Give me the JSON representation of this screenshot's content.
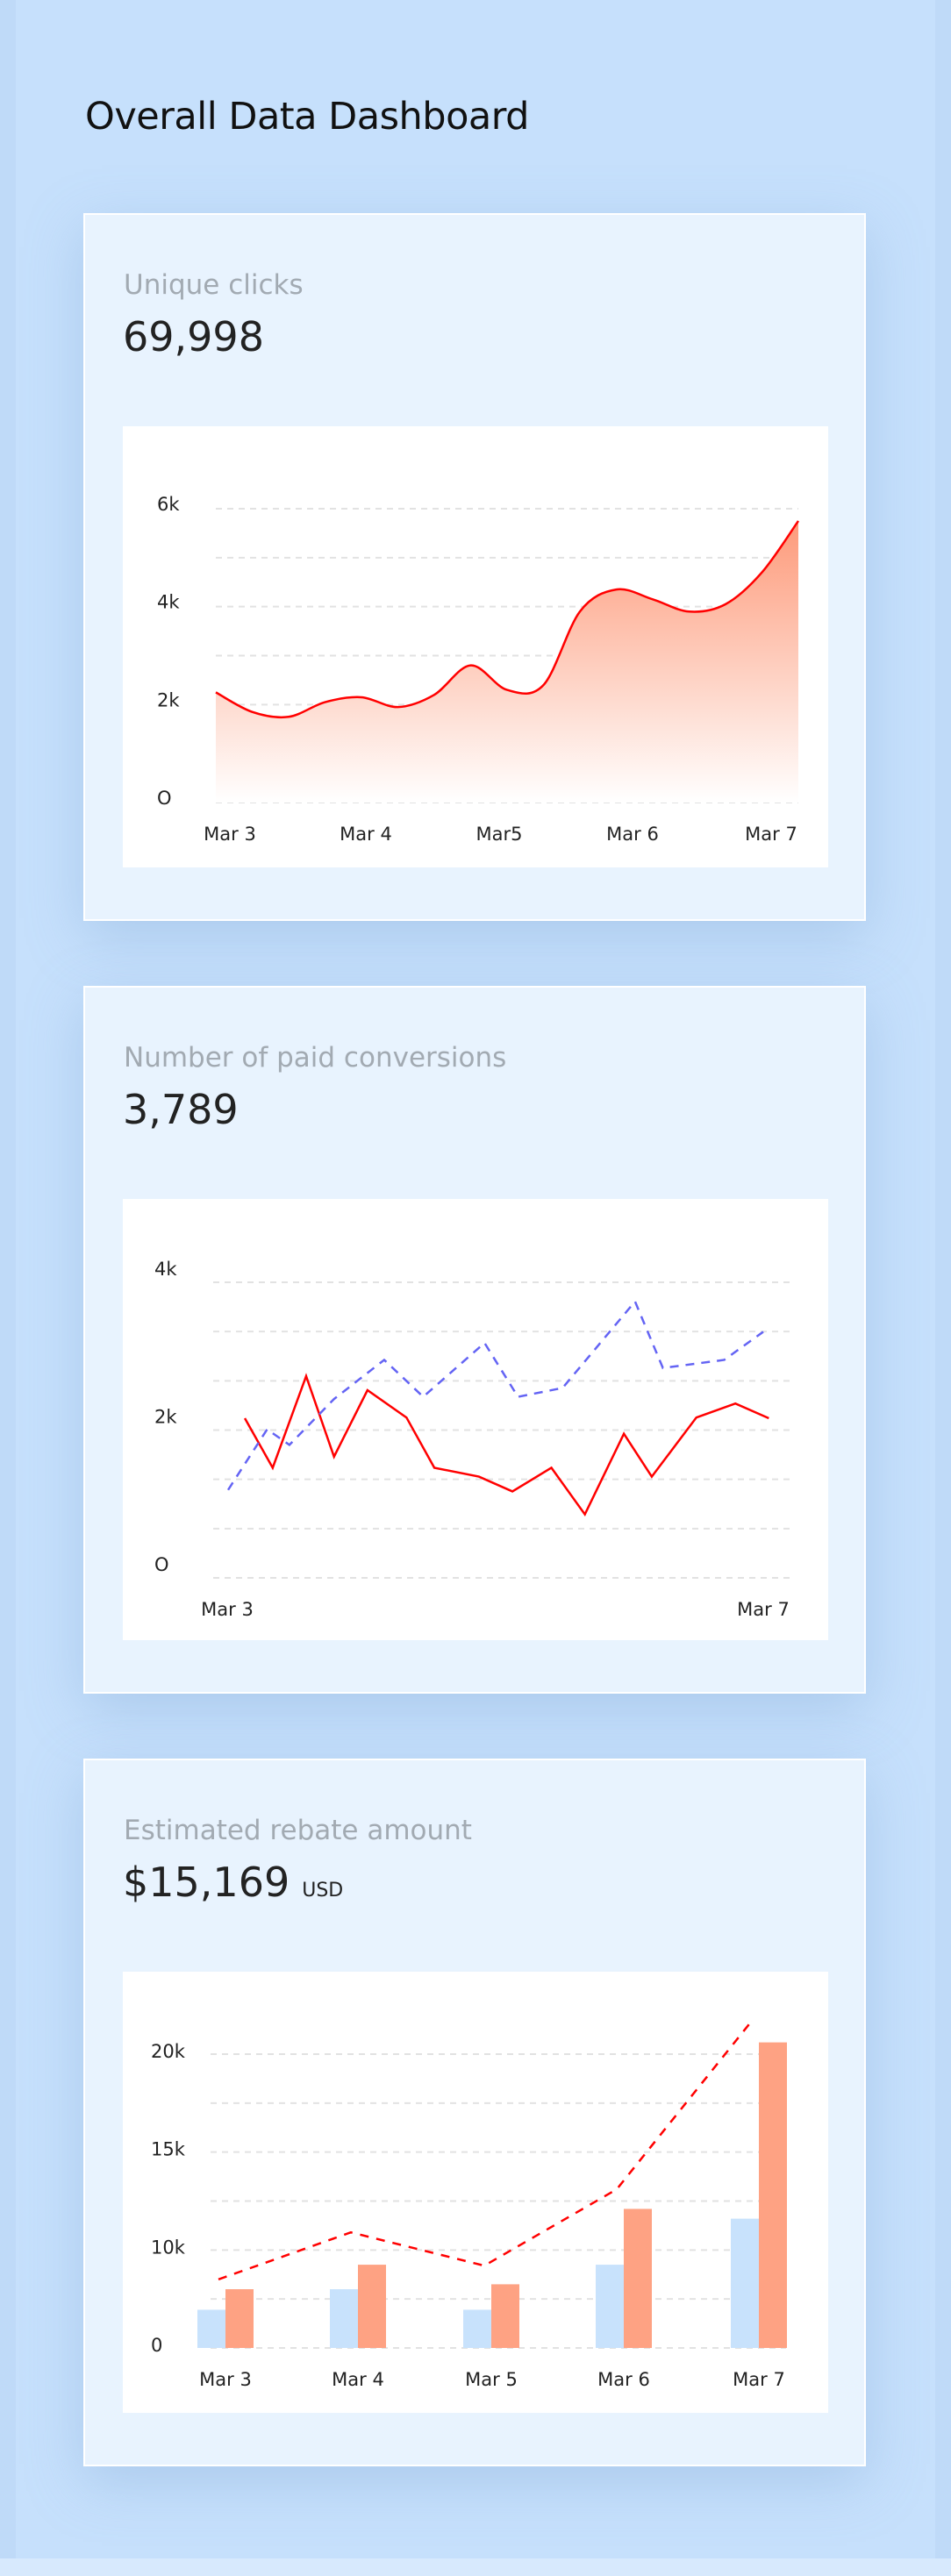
{
  "page": {
    "title": "Overall Data Dashboard"
  },
  "colors": {
    "background": "#c6e0fc",
    "card": "#e8f3fe",
    "red": "#ff0000",
    "area_top": "#fd9a7a",
    "blue_dashed": "#6464f4",
    "bar_blue": "#c8e2fc",
    "bar_orange": "#fea283"
  },
  "cards": [
    {
      "label": "Unique clicks",
      "value": "69,998"
    },
    {
      "label": "Number of paid conversions",
      "value": "3,789"
    },
    {
      "label": "Estimated rebate amount",
      "value": "$15,169",
      "unit": "USD"
    }
  ],
  "chart_data": [
    {
      "type": "area",
      "smooth": true,
      "grid": true,
      "ylim": [
        0,
        6000
      ],
      "y_ticks": [
        {
          "value": 0,
          "label": "O"
        },
        {
          "value": 2000,
          "label": "2k"
        },
        {
          "value": 4000,
          "label": "4k"
        },
        {
          "value": 6000,
          "label": "6k"
        }
      ],
      "x_ticks": [
        "Mar 3",
        "Mar 4",
        "Mar5",
        "Mar 6",
        "Mar 7"
      ],
      "x": [
        "Mar 3 00:00",
        "Mar 3 06:00",
        "Mar 3 12:00",
        "Mar 3 18:00",
        "Mar 4 00:00",
        "Mar 4 06:00",
        "Mar 4 12:00",
        "Mar 4 18:00",
        "Mar 5 00:00",
        "Mar 5 06:00",
        "Mar 5 12:00",
        "Mar 5 18:00",
        "Mar 6 00:00",
        "Mar 6 06:00",
        "Mar 6 12:00",
        "Mar 6 18:00",
        "Mar 7 00:00"
      ],
      "values": [
        2250,
        1850,
        1750,
        2050,
        2150,
        1950,
        2200,
        2800,
        2300,
        2400,
        3900,
        4350,
        4150,
        3900,
        4050,
        4700,
        5750
      ]
    },
    {
      "type": "line",
      "grid": true,
      "ylim": [
        0,
        4000
      ],
      "y_ticks": [
        {
          "value": 0,
          "label": "O"
        },
        {
          "value": 2000,
          "label": "2k"
        },
        {
          "value": 4000,
          "label": "4k"
        }
      ],
      "x_ticks": [
        "Mar 3",
        "Mar 7"
      ],
      "series": [
        {
          "style": "solid",
          "color": "#ff0000",
          "x": [
            "Mar 3 03:00",
            "Mar 3 08:00",
            "Mar 3 14:00",
            "Mar 3 19:00",
            "Mar 4 01:00",
            "Mar 4 08:00",
            "Mar 4 13:00",
            "Mar 4 21:00",
            "Mar 5 03:00",
            "Mar 5 10:00",
            "Mar 5 16:00",
            "Mar 5 23:00",
            "Mar 6 04:00",
            "Mar 6 12:00",
            "Mar 6 19:00",
            "Mar 7 01:00"
          ],
          "values": [
            2160,
            1490,
            2730,
            1640,
            2540,
            2170,
            1490,
            1370,
            1170,
            1490,
            860,
            1950,
            1370,
            2170,
            2360,
            2160
          ]
        },
        {
          "style": "dashed",
          "color": "#6464f4",
          "x": [
            "Mar 3 00:00",
            "Mar 3 07:00",
            "Mar 3 11:00",
            "Mar 3 19:00",
            "Mar 4 04:00",
            "Mar 4 11:00",
            "Mar 4 22:00",
            "Mar 5 04:00",
            "Mar 5 12:00",
            "Mar 6 01:00",
            "Mar 6 06:00",
            "Mar 6 17:00",
            "Mar 7 00:00"
          ],
          "values": [
            1190,
            2010,
            1800,
            2420,
            2950,
            2450,
            3180,
            2450,
            2570,
            3740,
            2840,
            2950,
            3330
          ]
        }
      ]
    },
    {
      "type": "bar",
      "grid": true,
      "y_ticks": [
        {
          "value": 0,
          "label": "0"
        },
        {
          "value": 10000,
          "label": "10k"
        },
        {
          "value": 15000,
          "label": "15k"
        },
        {
          "value": 20000,
          "label": "20k"
        }
      ],
      "categories": [
        "Mar 3",
        "Mar 4",
        "Mar 5",
        "Mar 6",
        "Mar 7"
      ],
      "series": [
        {
          "type": "bar",
          "color": "#c8e2fc",
          "values": [
            3900,
            6000,
            3900,
            8500,
            11600
          ]
        },
        {
          "type": "bar",
          "color": "#fea283",
          "values": [
            6000,
            8500,
            6500,
            12100,
            20600
          ]
        },
        {
          "type": "line",
          "style": "dashed",
          "color": "#ff0000",
          "values": [
            7000,
            10900,
            8400,
            13100,
            21700
          ]
        }
      ]
    }
  ]
}
